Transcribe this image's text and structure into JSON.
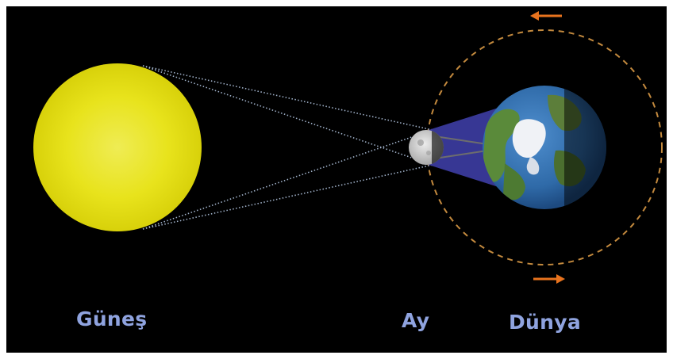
{
  "labels": {
    "sun": "Güneş",
    "moon": "Ay",
    "earth": "Dünya"
  },
  "colors": {
    "background": "#000000",
    "label": "#8fa3df",
    "sun": "#e7e20f",
    "sun_rays": "#9fb0c8",
    "orbit": "#c48a3e",
    "arrow": "#e8731e",
    "shadow": "#3a3a9c",
    "earth_ocean": "#2f6aa8"
  },
  "icons": {
    "orbit_arrow_top": "arrow-left-icon",
    "orbit_arrow_bottom": "arrow-right-icon"
  }
}
